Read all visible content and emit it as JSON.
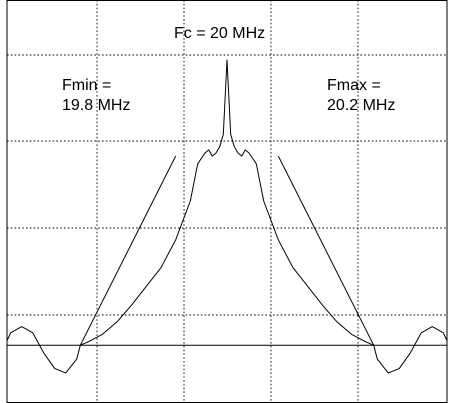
{
  "chart_data": {
    "type": "line",
    "title": "",
    "xlabel": "",
    "ylabel": "",
    "grid": true,
    "grid_divisions": {
      "x": 5,
      "y": 5
    },
    "xlim": [
      19.7,
      20.3
    ],
    "ylim": [
      0,
      1
    ],
    "annotations": {
      "center": "Fc = 20 MHz",
      "fmin_line1": "Fmin =",
      "fmin_line2": "19.8 MHz",
      "fmax_line1": "Fmax =",
      "fmax_line2": "20.2 MHz"
    },
    "series": [
      {
        "x": [
          19.7,
          19.705,
          19.72,
          19.735,
          19.75,
          19.765,
          19.78,
          19.795,
          19.8,
          19.81,
          19.83,
          19.85,
          19.87,
          19.89,
          19.91,
          19.93,
          19.95,
          19.96,
          19.97,
          19.975,
          19.98,
          19.985,
          19.99,
          19.995,
          20.0,
          20.005,
          20.01,
          20.015,
          20.02,
          20.025,
          20.03,
          20.04,
          20.05,
          20.07,
          20.09,
          20.11,
          20.13,
          20.15,
          20.17,
          20.19,
          20.2,
          20.205,
          20.22,
          20.235,
          20.25,
          20.265,
          20.28,
          20.295,
          20.3
        ],
        "y": [
          0.095,
          0.12,
          0.14,
          0.12,
          0.055,
          0.005,
          -0.01,
          0.035,
          0.08,
          0.09,
          0.115,
          0.155,
          0.21,
          0.27,
          0.33,
          0.42,
          0.545,
          0.665,
          0.7,
          0.71,
          0.69,
          0.7,
          0.72,
          0.76,
          1.0,
          0.76,
          0.72,
          0.7,
          0.69,
          0.71,
          0.7,
          0.665,
          0.545,
          0.42,
          0.33,
          0.27,
          0.21,
          0.155,
          0.115,
          0.09,
          0.08,
          0.035,
          -0.01,
          0.005,
          0.055,
          0.12,
          0.14,
          0.12,
          0.095
        ]
      },
      {
        "x": [
          19.7,
          19.8,
          19.87,
          19.94,
          19.97,
          19.99,
          20.0,
          20.01,
          20.03,
          20.06,
          20.13,
          20.2,
          20.3
        ],
        "y": [
          0.08,
          0.08,
          0.08,
          0.08,
          0.08,
          0.08,
          0.08,
          0.08,
          0.08,
          0.08,
          0.08,
          0.08,
          0.08
        ]
      }
    ]
  }
}
